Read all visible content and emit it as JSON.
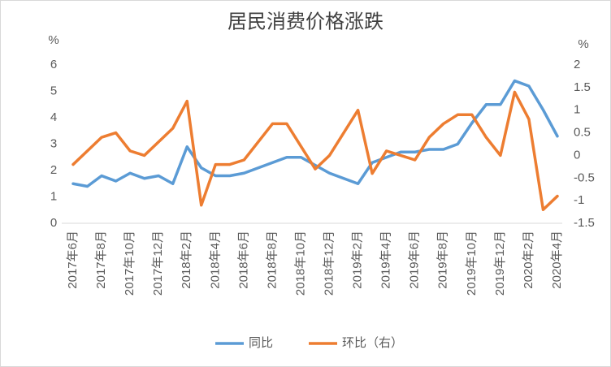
{
  "chart_data": {
    "type": "line",
    "title": "居民消费价格涨跌",
    "y_label": "%",
    "y2_label": "%",
    "categories": [
      "2017年6月",
      null,
      "2017年8月",
      null,
      "2017年10月",
      null,
      "2017年12月",
      null,
      "2018年2月",
      null,
      "2018年4月",
      null,
      "2018年6月",
      null,
      "2018年8月",
      null,
      "2018年10月",
      null,
      "2018年12月",
      null,
      "2019年2月",
      null,
      "2019年4月",
      null,
      "2019年6月",
      null,
      "2019年8月",
      null,
      "2019年10月",
      null,
      "2019年12月",
      null,
      "2020年2月",
      null,
      "2020年4月"
    ],
    "series": [
      {
        "name": "同比",
        "color": "#5b9bd5",
        "values": [
          1.5,
          1.4,
          1.8,
          1.6,
          1.9,
          1.7,
          1.8,
          1.5,
          2.9,
          2.1,
          1.8,
          1.8,
          1.9,
          2.1,
          2.3,
          2.5,
          2.5,
          2.2,
          1.9,
          1.7,
          1.5,
          2.3,
          2.5,
          2.7,
          2.7,
          2.8,
          2.8,
          3.0,
          3.8,
          4.5,
          4.5,
          5.4,
          5.2,
          4.3,
          3.3
        ]
      },
      {
        "name": "环比（右）",
        "color": "#ed7d31",
        "axis": "y2",
        "values": [
          -0.2,
          0.1,
          0.4,
          0.5,
          0.1,
          0.0,
          0.3,
          0.6,
          1.2,
          -1.1,
          -0.2,
          -0.2,
          -0.1,
          0.3,
          0.7,
          0.7,
          0.2,
          -0.3,
          0.0,
          0.5,
          1.0,
          -0.4,
          0.1,
          0.0,
          -0.1,
          0.4,
          0.7,
          0.9,
          0.9,
          0.4,
          0.0,
          1.4,
          0.8,
          -1.2,
          -0.9
        ]
      }
    ],
    "ylim": [
      0,
      6
    ],
    "yticks": [
      0,
      1,
      2,
      3,
      4,
      5,
      6
    ],
    "y2lim": [
      -1.5,
      2
    ],
    "y2ticks": [
      -1.5,
      -1,
      -0.5,
      0,
      0.5,
      1,
      1.5,
      2
    ],
    "legend": "bottom"
  }
}
